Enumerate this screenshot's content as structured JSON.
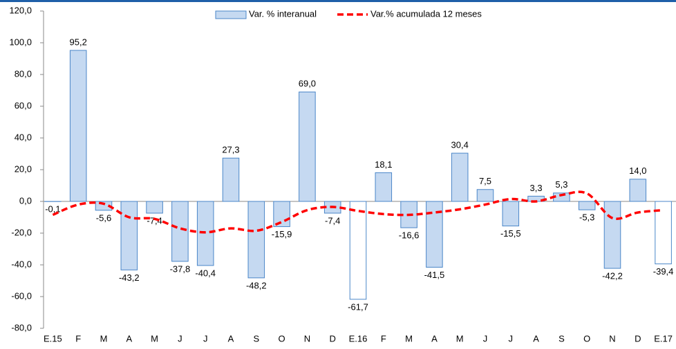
{
  "chart_data": {
    "type": "bar-line",
    "categories": [
      "E.15",
      "F",
      "M",
      "A",
      "M",
      "J",
      "J",
      "A",
      "S",
      "O",
      "N",
      "D",
      "E.16",
      "F",
      "M",
      "A",
      "M",
      "J",
      "J",
      "A",
      "S",
      "O",
      "N",
      "D",
      "E.17"
    ],
    "series": [
      {
        "name": "Var. % interanual",
        "type": "bar",
        "color": "#c5d9f1",
        "stroke": "#4a86c8",
        "colors": [
          "#c5d9f1",
          "#c5d9f1",
          "#c5d9f1",
          "#c5d9f1",
          "#c5d9f1",
          "#c5d9f1",
          "#c5d9f1",
          "#c5d9f1",
          "#c5d9f1",
          "#c5d9f1",
          "#c5d9f1",
          "#c5d9f1",
          "#ffffff",
          "#c5d9f1",
          "#c5d9f1",
          "#c5d9f1",
          "#c5d9f1",
          "#c5d9f1",
          "#c5d9f1",
          "#c5d9f1",
          "#c5d9f1",
          "#c5d9f1",
          "#c5d9f1",
          "#c5d9f1",
          "#ffffff"
        ],
        "values": [
          -0.1,
          95.2,
          -5.6,
          -43.2,
          -7.4,
          -37.8,
          -40.4,
          27.3,
          -48.2,
          -15.9,
          69.0,
          -7.4,
          -61.7,
          18.1,
          -16.6,
          -41.5,
          30.4,
          7.5,
          -15.5,
          3.3,
          5.3,
          -5.3,
          -42.2,
          14.0,
          -39.4
        ],
        "value_labels": [
          "-0,1",
          "95,2",
          "-5,6",
          "-43,2",
          "-7,4",
          "-37,8",
          "-40,4",
          "27,3",
          "-48,2",
          "-15,9",
          "69,0",
          "-7,4",
          "-61,7",
          "18,1",
          "-16,6",
          "-41,5",
          "30,4",
          "7,5",
          "-15,5",
          "3,3",
          "5,3",
          "-5,3",
          "-42,2",
          "14,0",
          "-39,4"
        ]
      },
      {
        "name": "Var.% acumulada 12 meses",
        "type": "line",
        "color": "#ff0000",
        "values": [
          -8.5,
          -2,
          -1.5,
          -10,
          -11,
          -17,
          -19.5,
          -17,
          -18.5,
          -13,
          -5.5,
          -3.5,
          -6,
          -8,
          -8.5,
          -7,
          -5,
          -2,
          1.5,
          0,
          4,
          5,
          -10.5,
          -7,
          -5.5
        ]
      }
    ],
    "ylim": [
      -80,
      120
    ],
    "yticks": [
      {
        "value": -80,
        "label": "-80,0"
      },
      {
        "value": -60,
        "label": "-60,0"
      },
      {
        "value": -40,
        "label": "-40,0"
      },
      {
        "value": -20,
        "label": "-20,0"
      },
      {
        "value": 0,
        "label": "0,0"
      },
      {
        "value": 20,
        "label": "20,0"
      },
      {
        "value": 40,
        "label": "40,0"
      },
      {
        "value": 60,
        "label": "60,0"
      },
      {
        "value": 80,
        "label": "80,0"
      },
      {
        "value": 100,
        "label": "100,0"
      },
      {
        "value": 120,
        "label": "120,0"
      }
    ],
    "legend": "top"
  }
}
